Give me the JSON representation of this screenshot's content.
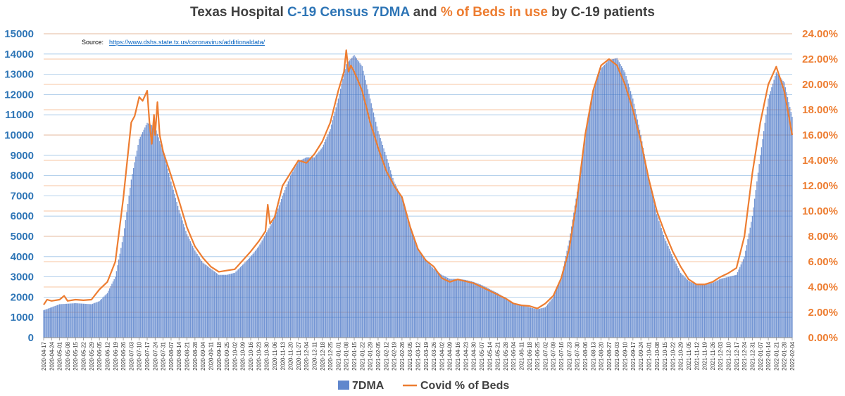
{
  "chart_data": {
    "type": "bar+line",
    "title_parts": [
      {
        "text": "Texas Hospital ",
        "color": "#404040"
      },
      {
        "text": "C-19 Census 7DMA",
        "color": "#2E75B6"
      },
      {
        "text": " and ",
        "color": "#404040"
      },
      {
        "text": "% of Beds in use",
        "color": "#ED7D31"
      },
      {
        "text": " by C-19 patients",
        "color": "#404040"
      }
    ],
    "source_label": "Source:",
    "source_url": "https://www.dshs.state.tx.us/coronavirus/additionaldata/",
    "x_start": "2020-04-17",
    "x_end": "2022-02-04",
    "x_tick_labels": [
      "2020-04-17",
      "2020-04-24",
      "2020-05-01",
      "2020-05-08",
      "2020-05-15",
      "2020-05-22",
      "2020-05-29",
      "2020-06-05",
      "2020-06-12",
      "2020-06-19",
      "2020-06-26",
      "2020-07-03",
      "2020-07-10",
      "2020-07-17",
      "2020-07-24",
      "2020-07-31",
      "2020-08-07",
      "2020-08-14",
      "2020-08-21",
      "2020-08-28",
      "2020-09-04",
      "2020-09-11",
      "2020-09-18",
      "2020-09-25",
      "2020-10-02",
      "2020-10-09",
      "2020-10-16",
      "2020-10-23",
      "2020-10-30",
      "2020-11-06",
      "2020-11-13",
      "2020-11-20",
      "2020-11-27",
      "2020-12-04",
      "2020-12-11",
      "2020-12-18",
      "2020-12-25",
      "2021-01-01",
      "2021-01-08",
      "2021-01-15",
      "2021-01-22",
      "2021-01-29",
      "2021-02-05",
      "2021-02-12",
      "2021-02-19",
      "2021-02-26",
      "2021-03-05",
      "2021-03-12",
      "2021-03-19",
      "2021-03-26",
      "2021-04-02",
      "2021-04-09",
      "2021-04-16",
      "2021-04-23",
      "2021-04-30",
      "2021-05-07",
      "2021-05-14",
      "2021-05-21",
      "2021-05-28",
      "2021-06-04",
      "2021-06-11",
      "2021-06-18",
      "2021-06-25",
      "2021-07-02",
      "2021-07-09",
      "2021-07-16",
      "2021-07-23",
      "2021-07-30",
      "2021-08-06",
      "2021-08-13",
      "2021-08-20",
      "2021-08-27",
      "2021-09-03",
      "2021-09-10",
      "2021-09-17",
      "2021-09-24",
      "2021-10-01",
      "2021-10-08",
      "2021-10-15",
      "2021-10-22",
      "2021-10-29",
      "2021-11-05",
      "2021-11-12",
      "2021-11-19",
      "2021-11-26",
      "2021-12-03",
      "2021-12-10",
      "2021-12-17",
      "2021-12-24",
      "2021-12-31",
      "2022-01-07",
      "2022-01-14",
      "2022-01-21",
      "2022-01-28",
      "2022-02-04"
    ],
    "y_left": {
      "min": 0,
      "max": 15000,
      "step": 1000,
      "color": "#2E75B6"
    },
    "y_right": {
      "min": 0,
      "max": 0.24,
      "step": 0.02,
      "color": "#ED7D31"
    },
    "grid": true,
    "legend_position": "bottom",
    "series": [
      {
        "name": "7DMA",
        "type": "bar",
        "axis": "left",
        "color": "#4472C4",
        "points": [
          [
            "2020-04-17",
            1350
          ],
          [
            "2020-05-01",
            1650
          ],
          [
            "2020-05-15",
            1700
          ],
          [
            "2020-05-29",
            1650
          ],
          [
            "2020-06-05",
            1800
          ],
          [
            "2020-06-12",
            2200
          ],
          [
            "2020-06-19",
            3000
          ],
          [
            "2020-06-26",
            5000
          ],
          [
            "2020-07-03",
            7800
          ],
          [
            "2020-07-10",
            9800
          ],
          [
            "2020-07-17",
            10600
          ],
          [
            "2020-07-24",
            10400
          ],
          [
            "2020-07-31",
            9200
          ],
          [
            "2020-08-07",
            7700
          ],
          [
            "2020-08-14",
            6300
          ],
          [
            "2020-08-21",
            5100
          ],
          [
            "2020-08-28",
            4300
          ],
          [
            "2020-09-04",
            3700
          ],
          [
            "2020-09-11",
            3400
          ],
          [
            "2020-09-18",
            3100
          ],
          [
            "2020-09-25",
            3100
          ],
          [
            "2020-10-02",
            3200
          ],
          [
            "2020-10-09",
            3600
          ],
          [
            "2020-10-16",
            4000
          ],
          [
            "2020-10-23",
            4500
          ],
          [
            "2020-10-30",
            5200
          ],
          [
            "2020-11-06",
            5900
          ],
          [
            "2020-11-13",
            7000
          ],
          [
            "2020-11-20",
            8000
          ],
          [
            "2020-11-27",
            8700
          ],
          [
            "2020-12-04",
            8900
          ],
          [
            "2020-12-11",
            8900
          ],
          [
            "2020-12-18",
            9400
          ],
          [
            "2020-12-25",
            10300
          ],
          [
            "2021-01-01",
            11800
          ],
          [
            "2021-01-08",
            13500
          ],
          [
            "2021-01-15",
            13950
          ],
          [
            "2021-01-22",
            13400
          ],
          [
            "2021-01-29",
            11800
          ],
          [
            "2021-02-05",
            10200
          ],
          [
            "2021-02-12",
            9000
          ],
          [
            "2021-02-19",
            7700
          ],
          [
            "2021-02-26",
            6900
          ],
          [
            "2021-03-05",
            5500
          ],
          [
            "2021-03-12",
            4400
          ],
          [
            "2021-03-19",
            3800
          ],
          [
            "2021-03-26",
            3400
          ],
          [
            "2021-04-02",
            3100
          ],
          [
            "2021-04-09",
            2900
          ],
          [
            "2021-04-16",
            2900
          ],
          [
            "2021-04-23",
            2850
          ],
          [
            "2021-04-30",
            2750
          ],
          [
            "2021-05-07",
            2600
          ],
          [
            "2021-05-14",
            2400
          ],
          [
            "2021-05-21",
            2200
          ],
          [
            "2021-05-28",
            1950
          ],
          [
            "2021-06-04",
            1700
          ],
          [
            "2021-06-11",
            1600
          ],
          [
            "2021-06-18",
            1500
          ],
          [
            "2021-06-25",
            1400
          ],
          [
            "2021-07-02",
            1500
          ],
          [
            "2021-07-09",
            2000
          ],
          [
            "2021-07-16",
            3000
          ],
          [
            "2021-07-23",
            4800
          ],
          [
            "2021-07-30",
            7200
          ],
          [
            "2021-08-06",
            10000
          ],
          [
            "2021-08-13",
            12200
          ],
          [
            "2021-08-20",
            13300
          ],
          [
            "2021-08-27",
            13700
          ],
          [
            "2021-09-03",
            13800
          ],
          [
            "2021-09-10",
            13100
          ],
          [
            "2021-09-17",
            11800
          ],
          [
            "2021-09-24",
            10000
          ],
          [
            "2021-10-01",
            7800
          ],
          [
            "2021-10-08",
            6100
          ],
          [
            "2021-10-15",
            4900
          ],
          [
            "2021-10-22",
            4000
          ],
          [
            "2021-10-29",
            3200
          ],
          [
            "2021-11-05",
            2800
          ],
          [
            "2021-11-12",
            2600
          ],
          [
            "2021-11-19",
            2600
          ],
          [
            "2021-11-26",
            2700
          ],
          [
            "2021-12-03",
            2900
          ],
          [
            "2021-12-10",
            3000
          ],
          [
            "2021-12-17",
            3100
          ],
          [
            "2021-12-24",
            4000
          ],
          [
            "2021-12-31",
            6000
          ],
          [
            "2022-01-07",
            9000
          ],
          [
            "2022-01-14",
            11800
          ],
          [
            "2022-01-21",
            13100
          ],
          [
            "2022-01-28",
            12600
          ],
          [
            "2022-02-04",
            10900
          ]
        ]
      },
      {
        "name": "Covid % of Beds",
        "type": "line",
        "axis": "right",
        "color": "#ED7D31",
        "points": [
          [
            "2020-04-17",
            0.026
          ],
          [
            "2020-04-20",
            0.03
          ],
          [
            "2020-04-24",
            0.029
          ],
          [
            "2020-05-01",
            0.03
          ],
          [
            "2020-05-05",
            0.033
          ],
          [
            "2020-05-08",
            0.029
          ],
          [
            "2020-05-15",
            0.03
          ],
          [
            "2020-05-22",
            0.0295
          ],
          [
            "2020-05-29",
            0.03
          ],
          [
            "2020-06-05",
            0.038
          ],
          [
            "2020-06-12",
            0.044
          ],
          [
            "2020-06-19",
            0.06
          ],
          [
            "2020-06-26",
            0.11
          ],
          [
            "2020-07-03",
            0.17
          ],
          [
            "2020-07-06",
            0.175
          ],
          [
            "2020-07-10",
            0.19
          ],
          [
            "2020-07-13",
            0.187
          ],
          [
            "2020-07-17",
            0.195
          ],
          [
            "2020-07-19",
            0.17
          ],
          [
            "2020-07-21",
            0.153
          ],
          [
            "2020-07-23",
            0.176
          ],
          [
            "2020-07-24",
            0.16
          ],
          [
            "2020-07-26",
            0.186
          ],
          [
            "2020-07-28",
            0.16
          ],
          [
            "2020-07-31",
            0.147
          ],
          [
            "2020-08-07",
            0.128
          ],
          [
            "2020-08-14",
            0.108
          ],
          [
            "2020-08-21",
            0.087
          ],
          [
            "2020-08-28",
            0.072
          ],
          [
            "2020-09-04",
            0.063
          ],
          [
            "2020-09-11",
            0.056
          ],
          [
            "2020-09-18",
            0.052
          ],
          [
            "2020-09-25",
            0.053
          ],
          [
            "2020-10-02",
            0.054
          ],
          [
            "2020-10-09",
            0.061
          ],
          [
            "2020-10-16",
            0.068
          ],
          [
            "2020-10-23",
            0.076
          ],
          [
            "2020-10-29",
            0.084
          ],
          [
            "2020-10-31",
            0.105
          ],
          [
            "2020-11-02",
            0.09
          ],
          [
            "2020-11-06",
            0.095
          ],
          [
            "2020-11-13",
            0.12
          ],
          [
            "2020-11-20",
            0.13
          ],
          [
            "2020-11-27",
            0.14
          ],
          [
            "2020-12-04",
            0.138
          ],
          [
            "2020-12-11",
            0.145
          ],
          [
            "2020-12-18",
            0.155
          ],
          [
            "2020-12-25",
            0.17
          ],
          [
            "2021-01-01",
            0.195
          ],
          [
            "2021-01-06",
            0.21
          ],
          [
            "2021-01-08",
            0.227
          ],
          [
            "2021-01-10",
            0.21
          ],
          [
            "2021-01-12",
            0.215
          ],
          [
            "2021-01-15",
            0.21
          ],
          [
            "2021-01-22",
            0.195
          ],
          [
            "2021-01-29",
            0.17
          ],
          [
            "2021-02-05",
            0.15
          ],
          [
            "2021-02-12",
            0.132
          ],
          [
            "2021-02-19",
            0.12
          ],
          [
            "2021-02-26",
            0.111
          ],
          [
            "2021-03-05",
            0.088
          ],
          [
            "2021-03-12",
            0.07
          ],
          [
            "2021-03-19",
            0.061
          ],
          [
            "2021-03-26",
            0.056
          ],
          [
            "2021-04-02",
            0.047
          ],
          [
            "2021-04-09",
            0.044
          ],
          [
            "2021-04-16",
            0.046
          ],
          [
            "2021-04-23",
            0.0445
          ],
          [
            "2021-04-30",
            0.043
          ],
          [
            "2021-05-07",
            0.04
          ],
          [
            "2021-05-14",
            0.037
          ],
          [
            "2021-05-21",
            0.034
          ],
          [
            "2021-05-28",
            0.031
          ],
          [
            "2021-06-04",
            0.027
          ],
          [
            "2021-06-11",
            0.0255
          ],
          [
            "2021-06-18",
            0.025
          ],
          [
            "2021-06-25",
            0.023
          ],
          [
            "2021-07-02",
            0.027
          ],
          [
            "2021-07-09",
            0.033
          ],
          [
            "2021-07-16",
            0.047
          ],
          [
            "2021-07-23",
            0.07
          ],
          [
            "2021-07-30",
            0.11
          ],
          [
            "2021-08-06",
            0.16
          ],
          [
            "2021-08-13",
            0.195
          ],
          [
            "2021-08-20",
            0.215
          ],
          [
            "2021-08-27",
            0.22
          ],
          [
            "2021-09-03",
            0.215
          ],
          [
            "2021-09-10",
            0.2
          ],
          [
            "2021-09-17",
            0.18
          ],
          [
            "2021-09-24",
            0.155
          ],
          [
            "2021-10-01",
            0.125
          ],
          [
            "2021-10-08",
            0.1
          ],
          [
            "2021-10-15",
            0.083
          ],
          [
            "2021-10-22",
            0.068
          ],
          [
            "2021-10-29",
            0.056
          ],
          [
            "2021-11-05",
            0.046
          ],
          [
            "2021-11-12",
            0.042
          ],
          [
            "2021-11-19",
            0.042
          ],
          [
            "2021-11-26",
            0.044
          ],
          [
            "2021-12-03",
            0.048
          ],
          [
            "2021-12-10",
            0.051
          ],
          [
            "2021-12-17",
            0.055
          ],
          [
            "2021-12-24",
            0.08
          ],
          [
            "2021-12-31",
            0.13
          ],
          [
            "2022-01-07",
            0.17
          ],
          [
            "2022-01-14",
            0.2
          ],
          [
            "2022-01-21",
            0.214
          ],
          [
            "2022-01-28",
            0.195
          ],
          [
            "2022-02-04",
            0.16
          ]
        ]
      }
    ]
  }
}
